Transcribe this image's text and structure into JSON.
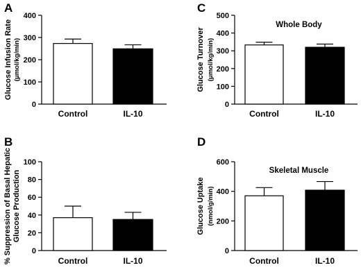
{
  "chart_data": [
    {
      "panel": "A",
      "type": "bar",
      "title": "",
      "ylabel": [
        "Glucose Infusion Rate",
        "(μmol/kg/min)"
      ],
      "ylim": [
        0,
        400
      ],
      "yticks": [
        0,
        100,
        200,
        300,
        400
      ],
      "categories": [
        "Control",
        "IL-10"
      ],
      "values": [
        273,
        249
      ],
      "errors": [
        20,
        18
      ],
      "colors": [
        "#ffffff",
        "#000000"
      ]
    },
    {
      "panel": "B",
      "type": "bar",
      "title": "",
      "ylabel": [
        "% Suppression of Basal Hepatic",
        "Glucose Production"
      ],
      "ylim": [
        0,
        100
      ],
      "yticks": [
        0,
        20,
        40,
        60,
        80,
        100
      ],
      "categories": [
        "Control",
        "IL-10"
      ],
      "values": [
        37,
        35
      ],
      "errors": [
        13,
        8
      ],
      "colors": [
        "#ffffff",
        "#000000"
      ]
    },
    {
      "panel": "C",
      "type": "bar",
      "title": "Whole Body",
      "ylabel": [
        "Glucose Turnover",
        "(μmol/kg/min)"
      ],
      "ylim": [
        0,
        500
      ],
      "yticks": [
        0,
        100,
        200,
        300,
        400,
        500
      ],
      "categories": [
        "Control",
        "IL-10"
      ],
      "values": [
        333,
        320
      ],
      "errors": [
        15,
        18
      ],
      "colors": [
        "#ffffff",
        "#000000"
      ]
    },
    {
      "panel": "D",
      "type": "bar",
      "title": "Skeletal Muscle",
      "ylabel": [
        "Glucose Uptake",
        "(nmol/g/min)"
      ],
      "ylim": [
        0,
        600
      ],
      "yticks": [
        0,
        200,
        400,
        600
      ],
      "categories": [
        "Control",
        "IL-10"
      ],
      "values": [
        370,
        408
      ],
      "errors": [
        55,
        58
      ],
      "colors": [
        "#ffffff",
        "#000000"
      ]
    }
  ]
}
